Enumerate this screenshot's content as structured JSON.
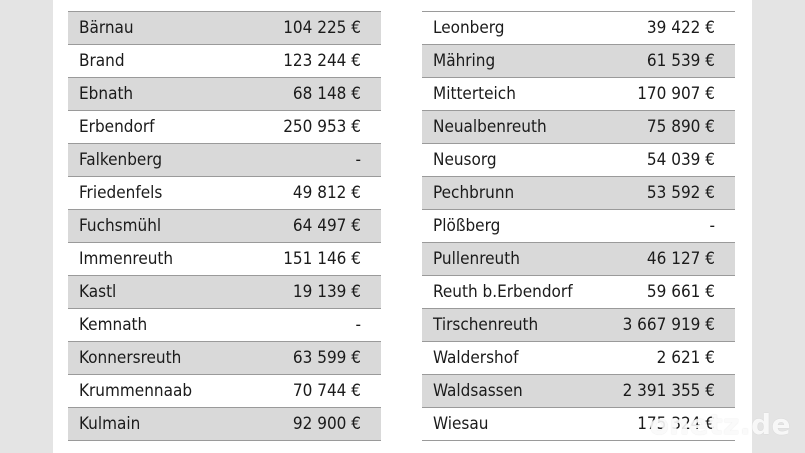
{
  "left_table": {
    "rows": [
      {
        "name": "Bärnau",
        "value": "104 225 €"
      },
      {
        "name": "Brand",
        "value": "123 244 €"
      },
      {
        "name": "Ebnath",
        "value": "68 148 €"
      },
      {
        "name": "Erbendorf",
        "value": "250 953 €"
      },
      {
        "name": "Falkenberg",
        "value": "-"
      },
      {
        "name": "Friedenfels",
        "value": "49 812 €"
      },
      {
        "name": "Fuchsmühl",
        "value": "64 497 €"
      },
      {
        "name": "Immenreuth",
        "value": "151 146 €"
      },
      {
        "name": "Kastl",
        "value": "19 139 €"
      },
      {
        "name": "Kemnath",
        "value": "-"
      },
      {
        "name": "Konnersreuth",
        "value": "63 599 €"
      },
      {
        "name": "Krummennaab",
        "value": "70 744 €"
      },
      {
        "name": "Kulmain",
        "value": "92 900 €"
      }
    ]
  },
  "right_table": {
    "rows": [
      {
        "name": "Leonberg",
        "value": "39 422 €"
      },
      {
        "name": "Mähring",
        "value": "61 539 €"
      },
      {
        "name": "Mitterteich",
        "value": "170 907 €"
      },
      {
        "name": "Neualbenreuth",
        "value": "75 890 €"
      },
      {
        "name": "Neusorg",
        "value": "54 039 €"
      },
      {
        "name": "Pechbrunn",
        "value": "53 592 €"
      },
      {
        "name": "Plößberg",
        "value": "-"
      },
      {
        "name": "Pullenreuth",
        "value": "46 127 €"
      },
      {
        "name": "Reuth b.Erbendorf",
        "value": "59 661 €"
      },
      {
        "name": "Tirschenreuth",
        "value": "3 667 919 €"
      },
      {
        "name": "Waldershof",
        "value": "2 621 €"
      },
      {
        "name": "Waldsassen",
        "value": "2 391 355 €"
      },
      {
        "name": "Wiesau",
        "value": "175 324 €"
      }
    ]
  },
  "watermark": {
    "text": "onetz.de"
  },
  "colors": {
    "shaded_row": "#d9d9d9",
    "plain_row": "#ffffff",
    "rule": "#9a9a9a",
    "background": "#e4e4e4"
  }
}
